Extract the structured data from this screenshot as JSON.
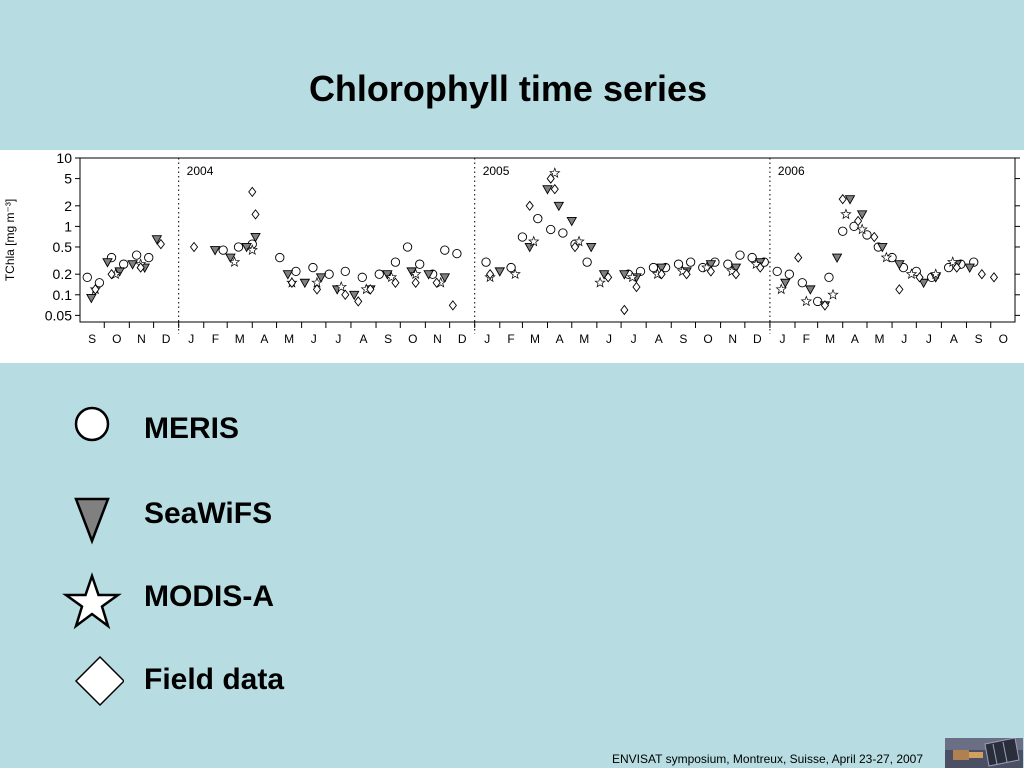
{
  "slide": {
    "title": "Chlorophyll time series",
    "footer": "ENVISAT symposium, Montreux, Suisse, April 23-27, 2007"
  },
  "legend": [
    {
      "symbol": "circle-icon",
      "label": "MERIS"
    },
    {
      "symbol": "triangle-down-icon",
      "label": "SeaWiFS",
      "fill": "#808080"
    },
    {
      "symbol": "star-icon",
      "label": "MODIS-A"
    },
    {
      "symbol": "diamond-icon",
      "label": "Field data"
    }
  ],
  "chart_data": {
    "type": "scatter",
    "title": "",
    "ylabel": "TChla [mg m⁻³]",
    "yscale": "log",
    "ylim": [
      0.04,
      10
    ],
    "yticks": [
      10,
      5,
      2,
      1,
      0.5,
      0.2,
      0.1,
      0.05
    ],
    "ytick_labels": [
      "10",
      "5",
      "2",
      "1",
      "0.5",
      "0.2",
      "0.1",
      "0.05"
    ],
    "xlim": [
      "2003-09-01",
      "2006-10-31"
    ],
    "month_labels": [
      "S",
      "O",
      "N",
      "D",
      "J",
      "F",
      "M",
      "A",
      "M",
      "J",
      "J",
      "A",
      "S",
      "O",
      "N",
      "D",
      "J",
      "F",
      "M",
      "A",
      "M",
      "J",
      "J",
      "A",
      "S",
      "O",
      "N",
      "D",
      "J",
      "F",
      "M",
      "A",
      "M",
      "J",
      "J",
      "A",
      "S",
      "O"
    ],
    "year_markers": [
      {
        "date": "2004-01-01",
        "label": "2004"
      },
      {
        "date": "2005-01-01",
        "label": "2005"
      },
      {
        "date": "2006-01-01",
        "label": "2006"
      }
    ],
    "grid": false,
    "series": [
      {
        "name": "MERIS",
        "marker": "circle",
        "x": [
          "2003-09-10",
          "2003-09-25",
          "2003-10-10",
          "2003-10-25",
          "2003-11-10",
          "2003-11-25",
          "2004-02-25",
          "2004-03-15",
          "2004-04-01",
          "2004-05-05",
          "2004-05-25",
          "2004-06-15",
          "2004-07-05",
          "2004-07-25",
          "2004-08-15",
          "2004-09-05",
          "2004-09-25",
          "2004-10-10",
          "2004-10-25",
          "2004-11-10",
          "2004-11-25",
          "2004-12-10",
          "2005-01-15",
          "2005-02-15",
          "2005-03-01",
          "2005-03-20",
          "2005-04-05",
          "2005-04-20",
          "2005-05-05",
          "2005-05-20",
          "2005-07-10",
          "2005-07-25",
          "2005-08-10",
          "2005-08-25",
          "2005-09-10",
          "2005-09-25",
          "2005-10-10",
          "2005-10-25",
          "2005-11-10",
          "2005-11-25",
          "2005-12-10",
          "2005-12-25",
          "2006-01-10",
          "2006-01-25",
          "2006-02-10",
          "2006-03-01",
          "2006-03-15",
          "2006-04-01",
          "2006-04-15",
          "2006-05-01",
          "2006-05-15",
          "2006-06-01",
          "2006-06-15",
          "2006-07-01",
          "2006-07-20",
          "2006-08-10",
          "2006-08-25",
          "2006-09-10"
        ],
        "y": [
          0.18,
          0.15,
          0.35,
          0.28,
          0.38,
          0.35,
          0.45,
          0.5,
          0.55,
          0.35,
          0.22,
          0.25,
          0.2,
          0.22,
          0.18,
          0.2,
          0.3,
          0.5,
          0.28,
          0.2,
          0.45,
          0.4,
          0.3,
          0.25,
          0.7,
          1.3,
          0.9,
          0.8,
          0.55,
          0.3,
          0.2,
          0.22,
          0.25,
          0.25,
          0.28,
          0.3,
          0.25,
          0.3,
          0.28,
          0.38,
          0.35,
          0.3,
          0.22,
          0.2,
          0.15,
          0.08,
          0.18,
          0.85,
          1.0,
          0.75,
          0.5,
          0.35,
          0.25,
          0.22,
          0.18,
          0.25,
          0.28,
          0.3
        ]
      },
      {
        "name": "SeaWiFS",
        "marker": "triangle",
        "x": [
          "2003-09-15",
          "2003-10-05",
          "2003-10-20",
          "2003-11-05",
          "2003-11-20",
          "2003-12-05",
          "2004-02-15",
          "2004-03-05",
          "2004-03-25",
          "2004-04-05",
          "2004-05-15",
          "2004-06-05",
          "2004-06-25",
          "2004-07-15",
          "2004-08-05",
          "2004-08-25",
          "2004-09-15",
          "2004-10-15",
          "2004-11-05",
          "2004-11-25",
          "2005-02-01",
          "2005-03-10",
          "2005-04-01",
          "2005-04-15",
          "2005-05-01",
          "2005-05-25",
          "2005-06-10",
          "2005-07-05",
          "2005-07-20",
          "2005-08-20",
          "2005-09-20",
          "2005-10-20",
          "2005-11-20",
          "2005-12-20",
          "2006-01-20",
          "2006-02-20",
          "2006-03-10",
          "2006-03-25",
          "2006-04-10",
          "2006-04-25",
          "2006-05-20",
          "2006-06-10",
          "2006-07-10",
          "2006-07-25",
          "2006-08-20",
          "2006-09-05"
        ],
        "y": [
          0.09,
          0.3,
          0.22,
          0.28,
          0.25,
          0.65,
          0.45,
          0.35,
          0.5,
          0.7,
          0.2,
          0.15,
          0.18,
          0.12,
          0.1,
          0.12,
          0.2,
          0.22,
          0.2,
          0.18,
          0.22,
          0.5,
          3.5,
          2.0,
          1.2,
          0.5,
          0.2,
          0.2,
          0.18,
          0.25,
          0.22,
          0.28,
          0.25,
          0.3,
          0.15,
          0.12,
          0.07,
          0.35,
          2.5,
          1.5,
          0.5,
          0.28,
          0.15,
          0.18,
          0.28,
          0.25
        ]
      },
      {
        "name": "MODIS-A",
        "marker": "star",
        "x": [
          "2003-09-20",
          "2003-10-15",
          "2003-11-15",
          "2004-03-10",
          "2004-04-01",
          "2004-05-20",
          "2004-06-20",
          "2004-07-20",
          "2004-08-20",
          "2004-09-20",
          "2004-10-20",
          "2004-11-20",
          "2005-01-20",
          "2005-02-20",
          "2005-03-15",
          "2005-04-10",
          "2005-05-10",
          "2005-06-05",
          "2005-07-15",
          "2005-08-15",
          "2005-09-15",
          "2005-10-15",
          "2005-11-15",
          "2005-12-15",
          "2006-01-15",
          "2006-02-15",
          "2006-03-20",
          "2006-04-05",
          "2006-04-25",
          "2006-05-25",
          "2006-06-25",
          "2006-07-25",
          "2006-08-15"
        ],
        "y": [
          0.12,
          0.2,
          0.28,
          0.3,
          0.45,
          0.15,
          0.15,
          0.13,
          0.12,
          0.18,
          0.2,
          0.15,
          0.18,
          0.2,
          0.6,
          6.0,
          0.6,
          0.15,
          0.18,
          0.2,
          0.22,
          0.25,
          0.22,
          0.28,
          0.12,
          0.08,
          0.1,
          1.5,
          0.9,
          0.35,
          0.2,
          0.2,
          0.3
        ]
      },
      {
        "name": "Field data",
        "marker": "diamond",
        "x": [
          "2003-09-20",
          "2003-10-10",
          "2003-11-15",
          "2003-12-10",
          "2004-01-20",
          "2004-04-01",
          "2004-04-05",
          "2004-05-20",
          "2004-06-20",
          "2004-07-25",
          "2004-08-10",
          "2004-08-25",
          "2004-09-25",
          "2004-10-20",
          "2004-11-15",
          "2004-12-05",
          "2005-01-20",
          "2005-03-10",
          "2005-04-05",
          "2005-04-10",
          "2005-05-05",
          "2005-06-15",
          "2005-07-05",
          "2005-07-20",
          "2005-08-20",
          "2005-09-20",
          "2005-10-20",
          "2005-11-20",
          "2005-12-20",
          "2006-02-05",
          "2006-03-10",
          "2006-04-01",
          "2006-04-20",
          "2006-05-10",
          "2006-06-10",
          "2006-07-05",
          "2006-08-20",
          "2006-09-20",
          "2006-10-05"
        ],
        "y": [
          0.12,
          0.2,
          0.25,
          0.55,
          0.5,
          3.2,
          1.5,
          0.15,
          0.12,
          0.1,
          0.08,
          0.12,
          0.15,
          0.15,
          0.15,
          0.07,
          0.2,
          2.0,
          5.0,
          3.5,
          0.5,
          0.18,
          0.06,
          0.13,
          0.2,
          0.2,
          0.22,
          0.2,
          0.25,
          0.35,
          0.07,
          2.5,
          1.2,
          0.7,
          0.12,
          0.18,
          0.25,
          0.2,
          0.18
        ]
      }
    ]
  }
}
